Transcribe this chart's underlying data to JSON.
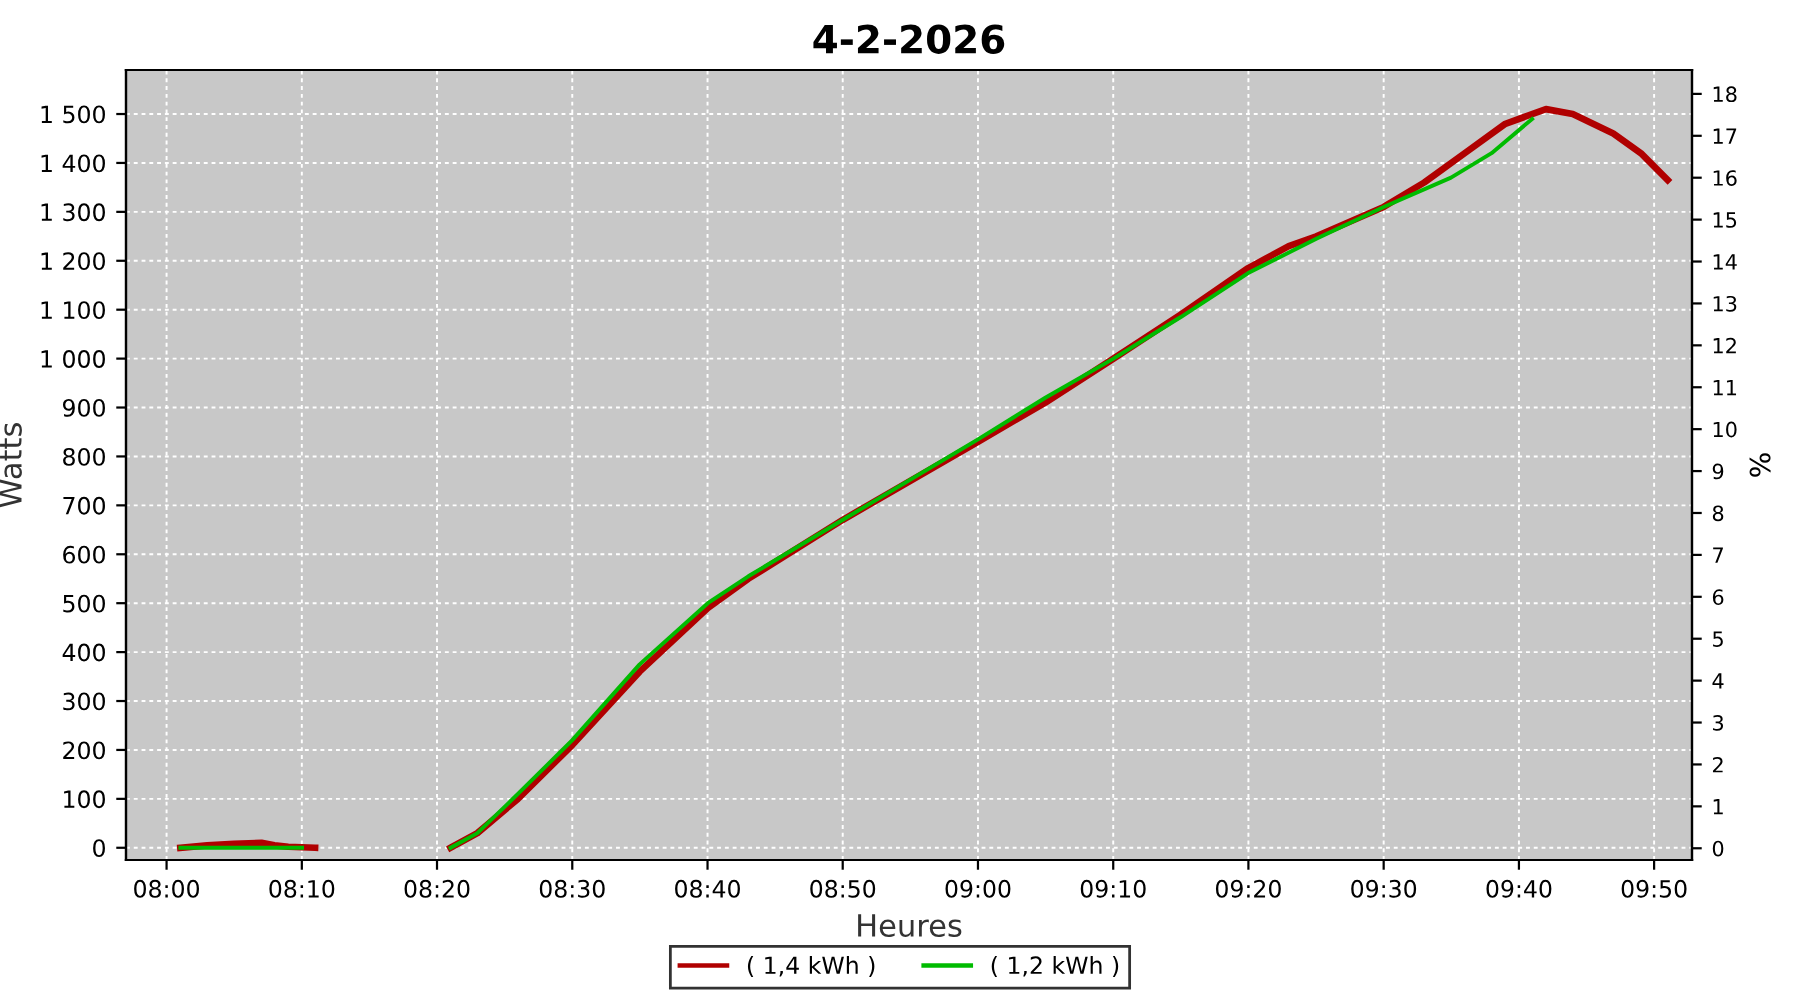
{
  "chart_data": {
    "type": "line",
    "title": "4-2-2026",
    "xlabel": "Heures",
    "ylabel": "Watts",
    "y2label": "%",
    "series": [
      {
        "name": "( 1,4 kWh )",
        "color": "#b00000",
        "x": [
          8.017,
          8.05,
          8.083,
          8.117,
          8.133,
          8.15,
          8.183,
          8.2,
          8.35,
          8.383,
          8.433,
          8.5,
          8.583,
          8.667,
          8.717,
          8.833,
          9.0,
          9.083,
          9.167,
          9.25,
          9.333,
          9.383,
          9.417,
          9.5,
          9.55,
          9.6,
          9.65,
          9.7,
          9.733,
          9.783,
          9.817,
          9.85
        ],
        "values": [
          0,
          5,
          8,
          10,
          5,
          2,
          0,
          null,
          0,
          30,
          100,
          210,
          360,
          490,
          550,
          670,
          830,
          910,
          1000,
          1090,
          1185,
          1230,
          1250,
          1310,
          1360,
          1420,
          1480,
          1510,
          1500,
          1460,
          1420,
          1365
        ]
      },
      {
        "name": "( 1,2 kWh )",
        "color": "#00bb00",
        "x": [
          8.017,
          8.167,
          8.2,
          8.35,
          8.383,
          8.433,
          8.5,
          8.583,
          8.667,
          8.717,
          8.833,
          9.0,
          9.083,
          9.167,
          9.25,
          9.333,
          9.417,
          9.5,
          9.583,
          9.633,
          9.683
        ],
        "values": [
          0,
          0,
          null,
          0,
          30,
          110,
          220,
          375,
          500,
          555,
          670,
          835,
          920,
          1000,
          1085,
          1175,
          1245,
          1310,
          1370,
          1420,
          1490
        ]
      }
    ],
    "xlim": [
      7.95,
      9.88
    ],
    "xticks": [
      {
        "value": 8.0,
        "label": "08:00"
      },
      {
        "value": 8.1667,
        "label": "08:10"
      },
      {
        "value": 8.3333,
        "label": "08:20"
      },
      {
        "value": 8.5,
        "label": "08:30"
      },
      {
        "value": 8.6667,
        "label": "08:40"
      },
      {
        "value": 8.8333,
        "label": "08:50"
      },
      {
        "value": 9.0,
        "label": "09:00"
      },
      {
        "value": 9.1667,
        "label": "09:10"
      },
      {
        "value": 9.3333,
        "label": "09:20"
      },
      {
        "value": 9.5,
        "label": "09:30"
      },
      {
        "value": 9.6667,
        "label": "09:40"
      },
      {
        "value": 9.8333,
        "label": "09:50"
      }
    ],
    "ylim": [
      -25,
      1590
    ],
    "yticks": [
      0,
      100,
      200,
      300,
      400,
      500,
      600,
      700,
      800,
      900,
      {
        "value": 1000,
        "label": "1 000"
      },
      {
        "value": 1100,
        "label": "1 100"
      },
      {
        "value": 1200,
        "label": "1 200"
      },
      {
        "value": 1300,
        "label": "1 300"
      },
      {
        "value": 1400,
        "label": "1 400"
      },
      {
        "value": 1500,
        "label": "1 500"
      }
    ],
    "y2lim": [
      -0.28,
      18.57
    ],
    "y2ticks": [
      0,
      1,
      2,
      3,
      4,
      5,
      6,
      7,
      8,
      9,
      10,
      11,
      12,
      13,
      14,
      15,
      16,
      17,
      18
    ],
    "grid": true,
    "legend": "bottom",
    "marker": "none",
    "line_style": "solid"
  }
}
